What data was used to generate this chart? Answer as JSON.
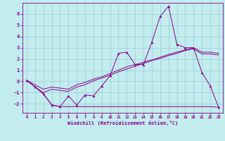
{
  "xlabel": "Windchill (Refroidissement éolien,°C)",
  "x": [
    0,
    1,
    2,
    3,
    4,
    5,
    6,
    7,
    8,
    9,
    10,
    11,
    12,
    13,
    14,
    15,
    16,
    17,
    18,
    19,
    20,
    21,
    22,
    23
  ],
  "line_main": [
    0.1,
    -0.5,
    -1.1,
    -2.1,
    -2.25,
    -1.3,
    -2.1,
    -1.2,
    -1.3,
    -0.4,
    0.5,
    2.5,
    2.6,
    1.5,
    1.5,
    3.5,
    5.8,
    6.7,
    3.3,
    3.0,
    3.0,
    0.8,
    -0.4,
    -2.3
  ],
  "line_flat": [
    0.1,
    -0.5,
    -1.1,
    -2.1,
    -2.25,
    -2.25,
    -2.25,
    -2.25,
    -2.25,
    -2.25,
    -2.25,
    -2.25,
    -2.25,
    -2.25,
    -2.25,
    -2.25,
    -2.25,
    -2.25,
    -2.25,
    -2.25,
    -2.25,
    -2.25,
    -2.25,
    -2.3
  ],
  "line_diag1": [
    0.1,
    -0.3,
    -0.7,
    -0.5,
    -0.6,
    -0.7,
    -0.3,
    -0.1,
    0.2,
    0.4,
    0.7,
    1.0,
    1.3,
    1.5,
    1.7,
    1.9,
    2.15,
    2.4,
    2.6,
    2.8,
    3.0,
    2.6,
    2.6,
    2.5
  ],
  "line_diag2": [
    0.1,
    -0.5,
    -1.0,
    -0.7,
    -0.8,
    -0.9,
    -0.5,
    -0.3,
    0.05,
    0.3,
    0.55,
    0.85,
    1.1,
    1.35,
    1.6,
    1.85,
    2.05,
    2.3,
    2.5,
    2.75,
    2.9,
    2.45,
    2.45,
    2.35
  ],
  "background_color": "#c2ecee",
  "grid_color": "#99ccd4",
  "line_color": "#880088",
  "ylim": [
    -2.8,
    7.0
  ],
  "yticks": [
    -2,
    -1,
    0,
    1,
    2,
    3,
    4,
    5,
    6
  ],
  "xticks": [
    0,
    1,
    2,
    3,
    4,
    5,
    6,
    7,
    8,
    9,
    10,
    11,
    12,
    13,
    14,
    15,
    16,
    17,
    18,
    19,
    20,
    21,
    22,
    23
  ]
}
